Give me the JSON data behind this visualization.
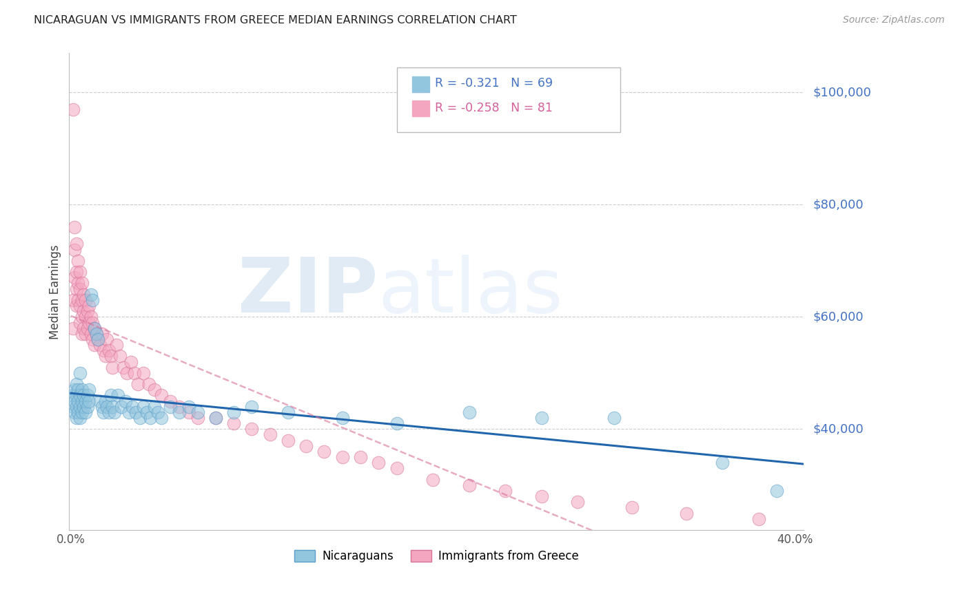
{
  "title": "NICARAGUAN VS IMMIGRANTS FROM GREECE MEDIAN EARNINGS CORRELATION CHART",
  "source": "Source: ZipAtlas.com",
  "ylabel": "Median Earnings",
  "y_ticks": [
    40000,
    60000,
    80000,
    100000
  ],
  "y_tick_labels": [
    "$40,000",
    "$60,000",
    "$80,000",
    "$100,000"
  ],
  "ylim": [
    22000,
    107000
  ],
  "xlim": [
    -0.001,
    0.405
  ],
  "x_ticks": [
    0.0,
    0.4
  ],
  "x_tick_labels": [
    "0.0%",
    "40.0%"
  ],
  "series1_label": "Nicaraguans",
  "series1_R": -0.321,
  "series1_N": 69,
  "series1_color": "#92C5DE",
  "series1_edge_color": "#5B9EC9",
  "series1_trend_color": "#2166AC",
  "series2_label": "Immigrants from Greece",
  "series2_R": -0.258,
  "series2_N": 81,
  "series2_color": "#F4A6C0",
  "series2_edge_color": "#D6729A",
  "series2_trend_color": "#D6729A",
  "watermark_zip": "ZIP",
  "watermark_atlas": "atlas",
  "background_color": "#FFFFFF",
  "grid_color": "#CCCCCC",
  "axis_label_color": "#4472C4",
  "right_label_color": "#4472C4",
  "series1_x": [
    0.001,
    0.001,
    0.002,
    0.002,
    0.002,
    0.003,
    0.003,
    0.003,
    0.003,
    0.004,
    0.004,
    0.004,
    0.005,
    0.005,
    0.005,
    0.005,
    0.006,
    0.006,
    0.006,
    0.007,
    0.007,
    0.008,
    0.008,
    0.009,
    0.009,
    0.01,
    0.01,
    0.011,
    0.012,
    0.013,
    0.014,
    0.015,
    0.016,
    0.017,
    0.018,
    0.019,
    0.02,
    0.021,
    0.022,
    0.023,
    0.024,
    0.026,
    0.028,
    0.03,
    0.032,
    0.034,
    0.036,
    0.038,
    0.04,
    0.042,
    0.044,
    0.046,
    0.048,
    0.05,
    0.055,
    0.06,
    0.065,
    0.07,
    0.08,
    0.09,
    0.1,
    0.12,
    0.15,
    0.18,
    0.22,
    0.26,
    0.3,
    0.36,
    0.39
  ],
  "series1_y": [
    44000,
    46000,
    43000,
    45000,
    47000,
    44000,
    46000,
    48000,
    42000,
    45000,
    43000,
    47000,
    44000,
    46000,
    42000,
    50000,
    43000,
    45000,
    47000,
    44000,
    46000,
    43000,
    45000,
    44000,
    46000,
    45000,
    47000,
    64000,
    63000,
    58000,
    57000,
    56000,
    45000,
    44000,
    43000,
    45000,
    44000,
    43000,
    46000,
    44000,
    43000,
    46000,
    44000,
    45000,
    43000,
    44000,
    43000,
    42000,
    44000,
    43000,
    42000,
    44000,
    43000,
    42000,
    44000,
    43000,
    44000,
    43000,
    42000,
    43000,
    44000,
    43000,
    42000,
    41000,
    43000,
    42000,
    42000,
    34000,
    29000
  ],
  "series2_x": [
    0.001,
    0.001,
    0.001,
    0.002,
    0.002,
    0.002,
    0.003,
    0.003,
    0.003,
    0.003,
    0.004,
    0.004,
    0.004,
    0.005,
    0.005,
    0.005,
    0.005,
    0.006,
    0.006,
    0.006,
    0.006,
    0.007,
    0.007,
    0.007,
    0.008,
    0.008,
    0.008,
    0.009,
    0.009,
    0.01,
    0.01,
    0.011,
    0.011,
    0.012,
    0.012,
    0.013,
    0.013,
    0.014,
    0.015,
    0.016,
    0.017,
    0.018,
    0.019,
    0.02,
    0.021,
    0.022,
    0.023,
    0.025,
    0.027,
    0.029,
    0.031,
    0.033,
    0.035,
    0.037,
    0.04,
    0.043,
    0.046,
    0.05,
    0.055,
    0.06,
    0.065,
    0.07,
    0.08,
    0.09,
    0.1,
    0.11,
    0.12,
    0.13,
    0.14,
    0.15,
    0.16,
    0.17,
    0.18,
    0.2,
    0.22,
    0.24,
    0.26,
    0.28,
    0.31,
    0.34,
    0.38
  ],
  "series2_y": [
    97000,
    63000,
    58000,
    76000,
    72000,
    67000,
    73000,
    68000,
    65000,
    62000,
    70000,
    66000,
    63000,
    68000,
    65000,
    62000,
    59000,
    66000,
    63000,
    60000,
    57000,
    64000,
    61000,
    58000,
    63000,
    60000,
    57000,
    61000,
    58000,
    62000,
    59000,
    60000,
    57000,
    59000,
    56000,
    58000,
    55000,
    57000,
    56000,
    55000,
    57000,
    54000,
    53000,
    56000,
    54000,
    53000,
    51000,
    55000,
    53000,
    51000,
    50000,
    52000,
    50000,
    48000,
    50000,
    48000,
    47000,
    46000,
    45000,
    44000,
    43000,
    42000,
    42000,
    41000,
    40000,
    39000,
    38000,
    37000,
    36000,
    35000,
    35000,
    34000,
    33000,
    31000,
    30000,
    29000,
    28000,
    27000,
    26000,
    25000,
    24000
  ]
}
